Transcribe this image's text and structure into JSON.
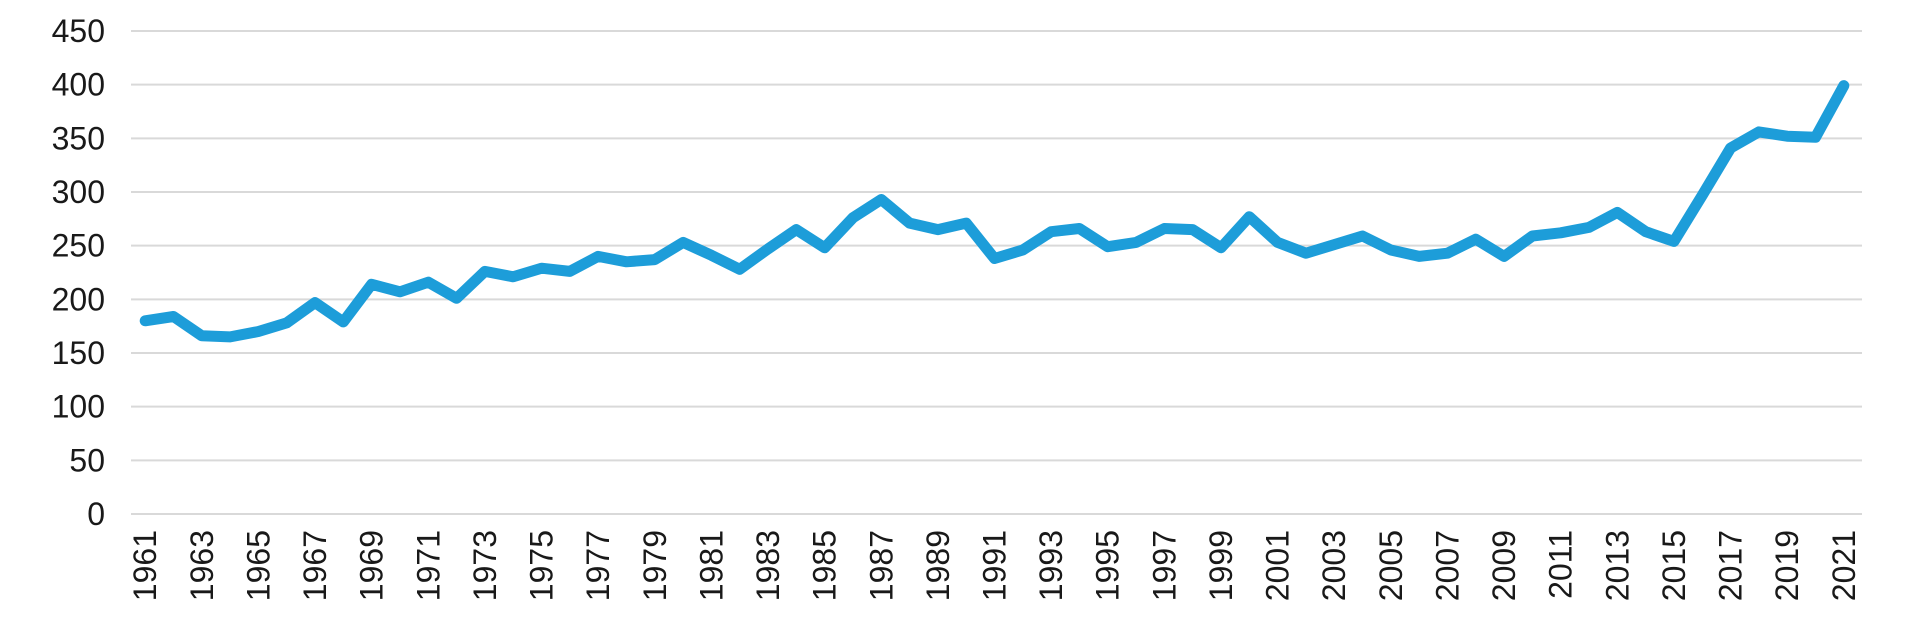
{
  "chart_data": {
    "type": "line",
    "title": "",
    "xlabel": "",
    "ylabel": "",
    "legend": "none",
    "grid": true,
    "ylim": [
      0,
      450
    ],
    "y_ticks": [
      0,
      50,
      100,
      150,
      200,
      250,
      300,
      350,
      400,
      450
    ],
    "x_tick_step": 2,
    "categories": [
      1961,
      1962,
      1963,
      1964,
      1965,
      1966,
      1967,
      1968,
      1969,
      1970,
      1971,
      1972,
      1973,
      1974,
      1975,
      1976,
      1977,
      1978,
      1979,
      1980,
      1981,
      1982,
      1983,
      1984,
      1985,
      1986,
      1987,
      1988,
      1989,
      1990,
      1991,
      1992,
      1993,
      1994,
      1995,
      1996,
      1997,
      1998,
      1999,
      2000,
      2001,
      2002,
      2003,
      2004,
      2005,
      2006,
      2007,
      2008,
      2009,
      2010,
      2011,
      2012,
      2013,
      2014,
      2015,
      2016,
      2017,
      2018,
      2019,
      2020,
      2021
    ],
    "series": [
      {
        "name": "value",
        "values": [
          180,
          184,
          166,
          165,
          170,
          178,
          197,
          179,
          214,
          207,
          216,
          201,
          226,
          221,
          229,
          226,
          240,
          235,
          237,
          253,
          241,
          228,
          247,
          265,
          248,
          276,
          293,
          271,
          265,
          271,
          238,
          246,
          263,
          266,
          249,
          253,
          266,
          265,
          248,
          277,
          253,
          243,
          251,
          259,
          246,
          240,
          243,
          256,
          240,
          259,
          262,
          267,
          281,
          263,
          254,
          297,
          341,
          356,
          352,
          351,
          399
        ]
      }
    ],
    "colors": {
      "line": "#1d9dd9",
      "grid": "#d9d9d9",
      "tick_label": "#191919"
    }
  }
}
